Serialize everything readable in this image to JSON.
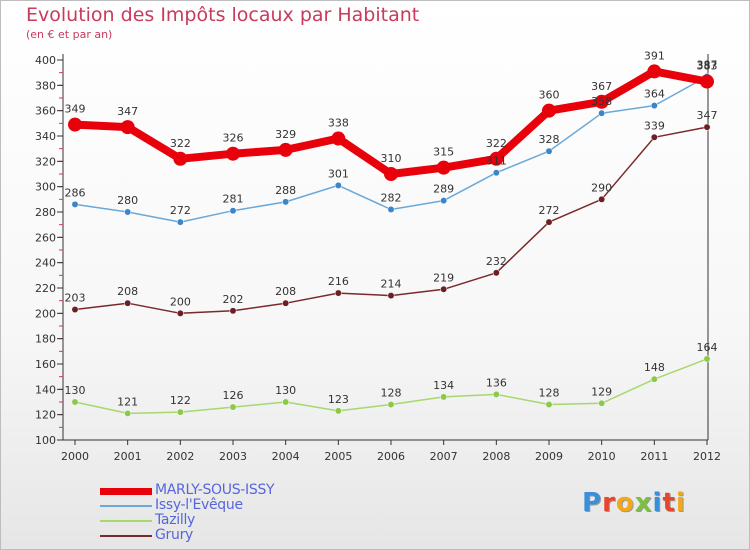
{
  "title": "Evolution des Impôts locaux par Habitant",
  "subtitle": "(en € et par an)",
  "brand": "Proxiti",
  "brand_colors": [
    "#3a8fd8",
    "#e8452c",
    "#f2a81d",
    "#7bc043",
    "#3a8fd8",
    "#e8452c",
    "#f2a81d"
  ],
  "chart_data": {
    "type": "line",
    "x": [
      "2000",
      "2001",
      "2002",
      "2003",
      "2004",
      "2005",
      "2006",
      "2007",
      "2008",
      "2009",
      "2010",
      "2011",
      "2012"
    ],
    "ylim": [
      100,
      400
    ],
    "yticks": [
      100,
      120,
      140,
      160,
      180,
      200,
      220,
      240,
      260,
      280,
      300,
      320,
      340,
      360,
      380,
      400
    ],
    "grid": false,
    "legend_position": "bottom-left",
    "series": [
      {
        "name": "MARLY-SOUS-ISSY",
        "color": "#e8000b",
        "marker_color": "#e8000b",
        "values": [
          349,
          347,
          322,
          326,
          329,
          338,
          310,
          315,
          322,
          360,
          367,
          391,
          383
        ],
        "labels": [
          "349",
          "347",
          "322",
          "326",
          "329",
          "338",
          "310",
          "315",
          "322",
          "360",
          "367",
          "391",
          "383"
        ]
      },
      {
        "name": "Issy-l'Evêque",
        "color": "#6aa8d8",
        "marker_color": "#3b86c8",
        "values": [
          286,
          280,
          272,
          281,
          288,
          301,
          282,
          289,
          311,
          328,
          358,
          364,
          387
        ],
        "labels": [
          "286",
          "280",
          "272",
          "281",
          "288",
          "301",
          "282",
          "289",
          "311",
          "328",
          "358",
          "364",
          "387"
        ]
      },
      {
        "name": "Tazilly",
        "color": "#a6d86e",
        "marker_color": "#8cc84a",
        "values": [
          130,
          121,
          122,
          126,
          130,
          123,
          128,
          134,
          136,
          128,
          129,
          148,
          164
        ],
        "labels": [
          "130",
          "121",
          "122",
          "126",
          "130",
          "123",
          "128",
          "134",
          "136",
          "128",
          "129",
          "148",
          "164"
        ]
      },
      {
        "name": "Grury",
        "color": "#7a2a2a",
        "marker_color": "#6b1f24",
        "values": [
          203,
          208,
          200,
          202,
          208,
          216,
          214,
          219,
          232,
          272,
          290,
          339,
          347
        ],
        "labels": [
          "203",
          "208",
          "200",
          "202",
          "208",
          "216",
          "214",
          "219",
          "232",
          "272",
          "290",
          "339",
          "347"
        ]
      }
    ]
  }
}
